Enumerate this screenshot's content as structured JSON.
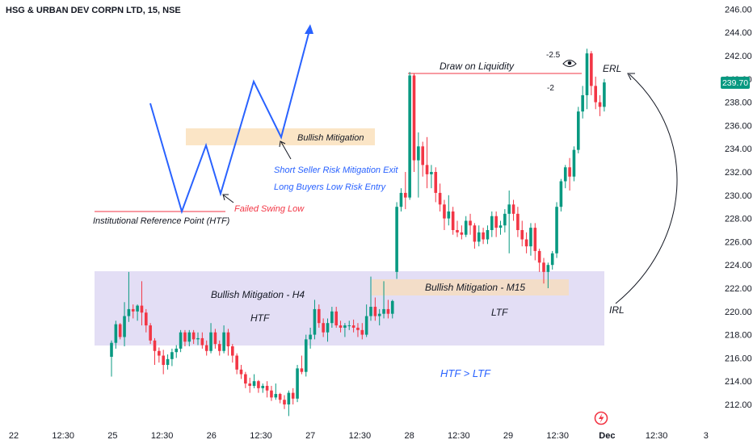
{
  "chart_data": {
    "type": "candlestick",
    "title": "HSG & URBAN DEV CORPN LTD, 15, NSE",
    "last_price": "239.70",
    "ylim": [
      211,
      246.5
    ],
    "y_ticks": [
      "212.00",
      "214.00",
      "216.00",
      "218.00",
      "220.00",
      "222.00",
      "224.00",
      "226.00",
      "228.00",
      "230.00",
      "232.00",
      "234.00",
      "236.00",
      "238.00",
      "240.00",
      "242.00",
      "244.00",
      "246.00"
    ],
    "x_ticks": [
      "22",
      "12:30",
      "25",
      "12:30",
      "26",
      "12:30",
      "27",
      "12:30",
      "28",
      "12:30",
      "29",
      "12:30",
      "Dec",
      "12:30",
      "3"
    ],
    "x_ticks_bold": [
      "Dec"
    ],
    "grid": false,
    "up_color": "#089981",
    "down_color": "#f23645",
    "candles": [
      [
        216.1,
        217.5,
        214.4,
        217.3
      ],
      [
        217.3,
        219.2,
        216.8,
        218.9
      ],
      [
        218.9,
        219.0,
        217.6,
        217.8
      ],
      [
        217.8,
        220.8,
        217.0,
        219.6
      ],
      [
        219.6,
        223.4,
        219.1,
        220.2
      ],
      [
        220.2,
        220.6,
        219.4,
        220.0
      ],
      [
        220.0,
        220.6,
        219.2,
        220.5
      ],
      [
        220.5,
        222.6,
        218.8,
        219.9
      ],
      [
        219.9,
        220.2,
        218.2,
        218.8
      ],
      [
        218.8,
        219.0,
        217.2,
        217.5
      ],
      [
        217.5,
        217.7,
        215.4,
        216.6
      ],
      [
        216.6,
        216.9,
        215.6,
        216.2
      ],
      [
        216.2,
        216.7,
        214.6,
        215.4
      ],
      [
        215.4,
        216.3,
        215.0,
        215.9
      ],
      [
        215.9,
        216.8,
        215.3,
        216.5
      ],
      [
        216.5,
        217.1,
        216.0,
        216.8
      ],
      [
        216.8,
        218.4,
        216.5,
        218.2
      ],
      [
        218.2,
        218.4,
        217.0,
        217.4
      ],
      [
        217.4,
        218.4,
        217.0,
        218.2
      ],
      [
        218.2,
        218.4,
        217.2,
        217.6
      ],
      [
        217.6,
        218.2,
        217.1,
        217.7
      ],
      [
        217.7,
        218.2,
        216.8,
        217.1
      ],
      [
        217.1,
        217.5,
        216.2,
        216.6
      ],
      [
        216.6,
        219.0,
        216.4,
        218.2
      ],
      [
        218.2,
        218.5,
        216.8,
        217.2
      ],
      [
        217.2,
        217.5,
        216.2,
        216.6
      ],
      [
        216.6,
        218.8,
        216.4,
        218.2
      ],
      [
        218.2,
        218.5,
        216.2,
        217.0
      ],
      [
        217.0,
        217.2,
        215.6,
        216.2
      ],
      [
        216.2,
        216.4,
        214.6,
        215.0
      ],
      [
        215.0,
        215.4,
        214.2,
        214.6
      ],
      [
        214.6,
        214.8,
        213.4,
        213.8
      ],
      [
        213.8,
        214.3,
        213.0,
        213.6
      ],
      [
        213.6,
        214.6,
        213.4,
        214.0
      ],
      [
        214.0,
        214.1,
        213.0,
        213.4
      ],
      [
        213.4,
        213.8,
        213.0,
        213.6
      ],
      [
        213.6,
        214.0,
        212.6,
        213.2
      ],
      [
        213.2,
        213.6,
        212.3,
        212.6
      ],
      [
        212.6,
        213.8,
        212.4,
        212.9
      ],
      [
        212.9,
        213.0,
        212.1,
        212.4
      ],
      [
        212.4,
        212.8,
        211.6,
        212.0
      ],
      [
        212.0,
        213.2,
        211.0,
        213.0
      ],
      [
        213.0,
        213.4,
        212.0,
        212.5
      ],
      [
        212.5,
        215.4,
        212.2,
        215.1
      ],
      [
        215.1,
        216.2,
        214.6,
        214.8
      ],
      [
        214.8,
        218.0,
        214.4,
        217.6
      ],
      [
        217.6,
        218.6,
        216.8,
        218.0
      ],
      [
        218.0,
        221.0,
        217.6,
        220.2
      ],
      [
        220.2,
        220.6,
        218.6,
        219.0
      ],
      [
        219.0,
        219.4,
        217.8,
        218.2
      ],
      [
        218.2,
        219.4,
        217.4,
        219.0
      ],
      [
        219.0,
        220.4,
        218.6,
        220.0
      ],
      [
        220.0,
        220.4,
        218.6,
        218.8
      ],
      [
        218.8,
        219.2,
        218.2,
        218.6
      ],
      [
        218.6,
        219.0,
        217.8,
        218.8
      ],
      [
        218.8,
        219.2,
        218.4,
        218.8
      ],
      [
        218.8,
        219.3,
        218.2,
        218.6
      ],
      [
        218.6,
        219.0,
        217.8,
        218.4
      ],
      [
        218.4,
        219.0,
        217.6,
        218.0
      ],
      [
        218.0,
        220.6,
        217.8,
        219.6
      ],
      [
        219.6,
        223.0,
        219.2,
        220.4
      ],
      [
        220.4,
        221.2,
        219.2,
        219.6
      ],
      [
        219.6,
        220.2,
        218.8,
        219.8
      ],
      [
        219.8,
        222.6,
        219.4,
        220.2
      ],
      [
        220.2,
        221.0,
        219.4,
        219.8
      ],
      [
        219.8,
        221.0,
        219.4,
        220.9
      ],
      [
        223.4,
        229.4,
        222.8,
        229.0
      ],
      [
        229.0,
        230.6,
        228.6,
        230.2
      ],
      [
        230.2,
        232.0,
        228.8,
        229.8
      ],
      [
        229.8,
        240.6,
        229.6,
        240.3
      ],
      [
        240.3,
        240.5,
        232.0,
        233.0
      ],
      [
        233.0,
        235.4,
        229.8,
        234.2
      ],
      [
        234.2,
        234.6,
        231.6,
        232.6
      ],
      [
        232.6,
        235.0,
        230.6,
        231.8
      ],
      [
        231.8,
        232.6,
        230.6,
        232.0
      ],
      [
        232.0,
        232.4,
        229.4,
        230.2
      ],
      [
        230.2,
        231.0,
        228.6,
        229.2
      ],
      [
        229.2,
        229.6,
        227.0,
        228.0
      ],
      [
        228.0,
        230.0,
        227.4,
        228.6
      ],
      [
        228.6,
        229.0,
        226.6,
        227.0
      ],
      [
        227.0,
        227.8,
        226.4,
        226.8
      ],
      [
        226.8,
        227.4,
        226.2,
        226.6
      ],
      [
        226.6,
        228.2,
        226.4,
        227.8
      ],
      [
        227.8,
        228.4,
        226.6,
        227.4
      ],
      [
        227.4,
        227.6,
        225.4,
        226.0
      ],
      [
        226.0,
        227.4,
        225.6,
        226.8
      ],
      [
        226.8,
        227.2,
        225.8,
        226.2
      ],
      [
        226.2,
        227.4,
        225.8,
        227.0
      ],
      [
        227.0,
        228.6,
        226.4,
        228.2
      ],
      [
        228.2,
        228.6,
        226.4,
        227.2
      ],
      [
        227.2,
        227.8,
        226.6,
        227.4
      ],
      [
        227.4,
        228.8,
        226.8,
        228.4
      ],
      [
        228.4,
        230.4,
        225.0,
        229.2
      ],
      [
        229.2,
        229.6,
        227.8,
        228.4
      ],
      [
        228.4,
        229.0,
        226.4,
        227.0
      ],
      [
        227.0,
        227.8,
        225.6,
        226.2
      ],
      [
        226.2,
        226.8,
        225.0,
        225.6
      ],
      [
        225.6,
        227.6,
        224.8,
        227.2
      ],
      [
        227.2,
        227.6,
        224.4,
        225.2
      ],
      [
        225.2,
        225.4,
        223.4,
        224.2
      ],
      [
        224.2,
        224.6,
        222.4,
        223.4
      ],
      [
        223.4,
        224.2,
        222.0,
        224.0
      ],
      [
        224.0,
        225.2,
        223.6,
        225.0
      ],
      [
        225.0,
        229.4,
        224.6,
        229.0
      ],
      [
        229.0,
        231.4,
        228.6,
        231.2
      ],
      [
        231.2,
        232.6,
        230.6,
        232.4
      ],
      [
        232.4,
        233.2,
        230.4,
        231.6
      ],
      [
        231.6,
        234.2,
        231.2,
        233.9
      ],
      [
        233.9,
        237.6,
        233.6,
        237.2
      ],
      [
        237.2,
        239.4,
        236.6,
        238.6
      ],
      [
        238.6,
        242.6,
        237.4,
        242.2
      ],
      [
        242.2,
        242.4,
        238.6,
        239.4
      ],
      [
        239.4,
        240.2,
        237.4,
        238.0
      ],
      [
        238.0,
        238.6,
        236.8,
        237.6
      ],
      [
        237.6,
        240.0,
        237.2,
        239.7
      ]
    ]
  },
  "annotations": {
    "institutional_ref": "Institutional Reference Point (HTF)",
    "failed_swing_low": "Failed Swing Low",
    "bullish_mitigation": "Bullish Mitigation",
    "short_seller": "Short Seller Risk Mitigation Exit",
    "long_buyers": "Long Buyers Low Risk Entry",
    "draw_on_liquidity": "Draw on Liquidity",
    "fib_a": "-2.5",
    "fib_b": "-2",
    "erl": "ERL",
    "irl": "IRL",
    "bm_h4": "Bullish Mitigation - H4",
    "htf": "HTF",
    "bm_m15": "Bullish Mitigation - M15",
    "ltf": "LTF",
    "htf_ltf": "HTF > LTF"
  }
}
